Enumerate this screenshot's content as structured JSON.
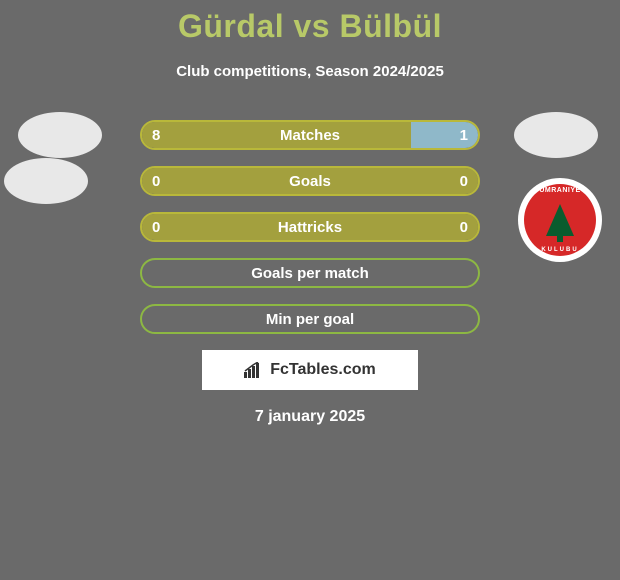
{
  "title": "Gürdal vs Bülbül",
  "subtitle": "Club competitions, Season 2024/2025",
  "colors": {
    "left_fill": "#a3a03e",
    "right_fill": "#8fb8c9",
    "border_yellow": "#b9b83a",
    "border_green": "#8db843",
    "bar_bg": "#6a6a6a",
    "title_color": "#b8c968",
    "background": "#6a6a6a"
  },
  "bars": [
    {
      "label": "Matches",
      "left_val": "8",
      "right_val": "1",
      "left_pct": 80,
      "right_pct": 20,
      "border": "#b9b83a",
      "left_fill": "#a3a03e",
      "right_fill": "#8fb8c9"
    },
    {
      "label": "Goals",
      "left_val": "0",
      "right_val": "0",
      "left_pct": 100,
      "right_pct": 0,
      "border": "#b9b83a",
      "left_fill": "#a3a03e",
      "right_fill": "#8fb8c9"
    },
    {
      "label": "Hattricks",
      "left_val": "0",
      "right_val": "0",
      "left_pct": 100,
      "right_pct": 0,
      "border": "#b9b83a",
      "left_fill": "#a3a03e",
      "right_fill": "#8fb8c9"
    },
    {
      "label": "Goals per match",
      "left_val": "",
      "right_val": "",
      "left_pct": 0,
      "right_pct": 0,
      "border": "#8db843",
      "left_fill": "#a3a03e",
      "right_fill": "#8fb8c9"
    },
    {
      "label": "Min per goal",
      "left_val": "",
      "right_val": "",
      "left_pct": 0,
      "right_pct": 0,
      "border": "#8db843",
      "left_fill": "#a3a03e",
      "right_fill": "#8fb8c9"
    }
  ],
  "attribution": "FcTables.com",
  "date_line": "7 january 2025",
  "club": {
    "top_text": "UMRANIYE",
    "bot_text": "KULUBU"
  }
}
